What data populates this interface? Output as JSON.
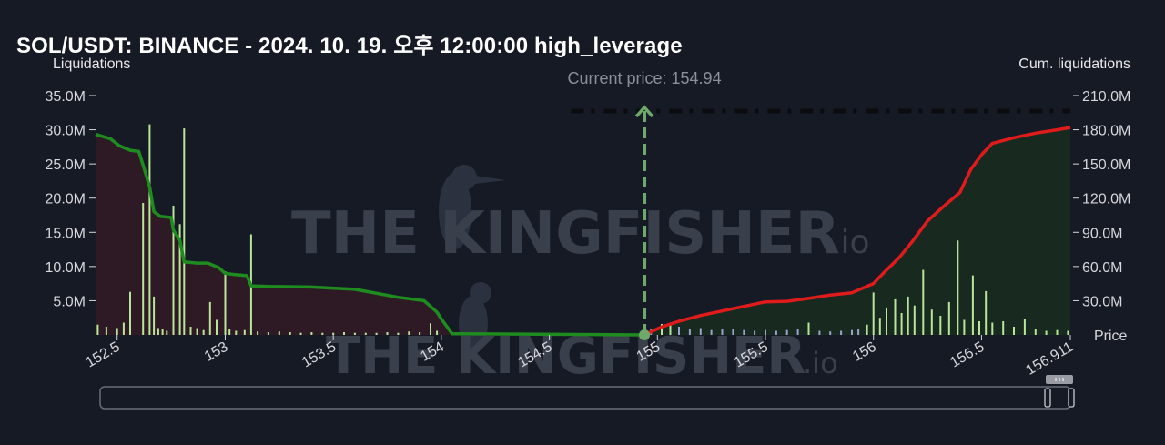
{
  "title": "SOL/USDT: BINANCE - 2024. 10. 19. 오후 12:00:00 high_leverage",
  "chart_data": {
    "type": "bar",
    "left_axis_label": "Liquidations",
    "right_axis_label": "Cum. liquidations",
    "x_axis_label": "Price",
    "current_price_label": "Current price: 154.94",
    "current_price": 154.94,
    "x_range": [
      152.4,
      156.911
    ],
    "x_ticks": [
      152.5,
      153,
      153.5,
      154,
      154.5,
      155,
      155.5,
      156,
      156.5,
      156.911
    ],
    "x_tick_labels": [
      "152.5",
      "153",
      "153.5",
      "154",
      "154.5",
      "155",
      "155.5",
      "156",
      "156.5",
      "156.911"
    ],
    "left_ylim": [
      0,
      35000000
    ],
    "left_ticks": [
      "5.0M",
      "10.0M",
      "15.0M",
      "20.0M",
      "25.0M",
      "30.0M",
      "35.0M"
    ],
    "left_tick_values": [
      5000000,
      10000000,
      15000000,
      20000000,
      25000000,
      30000000,
      35000000
    ],
    "right_ylim": [
      0,
      210000000
    ],
    "right_ticks": [
      "30.0M",
      "60.0M",
      "90.0M",
      "120.0M",
      "150.0M",
      "180.0M",
      "210.0M"
    ],
    "right_tick_values": [
      30000000,
      60000000,
      90000000,
      120000000,
      150000000,
      180000000,
      210000000
    ],
    "bars": [
      {
        "x": 152.41,
        "v": 1500000
      },
      {
        "x": 152.45,
        "v": 1200000
      },
      {
        "x": 152.5,
        "v": 1000000
      },
      {
        "x": 152.53,
        "v": 1800000
      },
      {
        "x": 152.56,
        "v": 6300000
      },
      {
        "x": 152.62,
        "v": 19300000
      },
      {
        "x": 152.65,
        "v": 30800000
      },
      {
        "x": 152.67,
        "v": 5600000
      },
      {
        "x": 152.69,
        "v": 1000000
      },
      {
        "x": 152.71,
        "v": 800000
      },
      {
        "x": 152.73,
        "v": 600000
      },
      {
        "x": 152.76,
        "v": 18900000
      },
      {
        "x": 152.79,
        "v": 16200000
      },
      {
        "x": 152.81,
        "v": 30200000
      },
      {
        "x": 152.84,
        "v": 1200000
      },
      {
        "x": 152.87,
        "v": 1000000
      },
      {
        "x": 152.9,
        "v": 700000
      },
      {
        "x": 152.93,
        "v": 4800000
      },
      {
        "x": 152.96,
        "v": 2200000
      },
      {
        "x": 153.0,
        "v": 9300000
      },
      {
        "x": 153.02,
        "v": 800000
      },
      {
        "x": 153.05,
        "v": 600000
      },
      {
        "x": 153.09,
        "v": 700000
      },
      {
        "x": 153.12,
        "v": 14700000
      },
      {
        "x": 153.15,
        "v": 500000
      },
      {
        "x": 153.2,
        "v": 400000
      },
      {
        "x": 153.25,
        "v": 500000
      },
      {
        "x": 153.3,
        "v": 400000
      },
      {
        "x": 153.35,
        "v": 300000
      },
      {
        "x": 153.4,
        "v": 400000
      },
      {
        "x": 153.45,
        "v": 300000
      },
      {
        "x": 153.5,
        "v": 300000
      },
      {
        "x": 153.55,
        "v": 400000
      },
      {
        "x": 153.6,
        "v": 300000
      },
      {
        "x": 153.65,
        "v": 300000
      },
      {
        "x": 153.7,
        "v": 300000
      },
      {
        "x": 153.75,
        "v": 400000
      },
      {
        "x": 153.8,
        "v": 300000
      },
      {
        "x": 153.85,
        "v": 500000
      },
      {
        "x": 153.9,
        "v": 400000
      },
      {
        "x": 153.95,
        "v": 1700000
      },
      {
        "x": 153.98,
        "v": 600000
      },
      {
        "x": 154.97,
        "v": 800000
      },
      {
        "x": 155.02,
        "v": 1600000
      },
      {
        "x": 155.06,
        "v": 1800000
      },
      {
        "x": 155.1,
        "v": 1200000
      },
      {
        "x": 155.15,
        "v": 900000
      },
      {
        "x": 155.2,
        "v": 1000000
      },
      {
        "x": 155.25,
        "v": 700000
      },
      {
        "x": 155.3,
        "v": 800000
      },
      {
        "x": 155.35,
        "v": 900000
      },
      {
        "x": 155.4,
        "v": 700000
      },
      {
        "x": 155.45,
        "v": 600000
      },
      {
        "x": 155.5,
        "v": 700000
      },
      {
        "x": 155.55,
        "v": 600000
      },
      {
        "x": 155.6,
        "v": 700000
      },
      {
        "x": 155.65,
        "v": 800000
      },
      {
        "x": 155.7,
        "v": 1800000
      },
      {
        "x": 155.75,
        "v": 600000
      },
      {
        "x": 155.8,
        "v": 500000
      },
      {
        "x": 155.85,
        "v": 600000
      },
      {
        "x": 155.9,
        "v": 700000
      },
      {
        "x": 155.93,
        "v": 900000
      },
      {
        "x": 155.97,
        "v": 1500000
      },
      {
        "x": 156.0,
        "v": 6200000
      },
      {
        "x": 156.03,
        "v": 2500000
      },
      {
        "x": 156.06,
        "v": 4000000
      },
      {
        "x": 156.1,
        "v": 5200000
      },
      {
        "x": 156.13,
        "v": 3200000
      },
      {
        "x": 156.16,
        "v": 5600000
      },
      {
        "x": 156.19,
        "v": 4300000
      },
      {
        "x": 156.23,
        "v": 9500000
      },
      {
        "x": 156.27,
        "v": 3700000
      },
      {
        "x": 156.31,
        "v": 2800000
      },
      {
        "x": 156.35,
        "v": 4800000
      },
      {
        "x": 156.39,
        "v": 13800000
      },
      {
        "x": 156.42,
        "v": 2200000
      },
      {
        "x": 156.46,
        "v": 8700000
      },
      {
        "x": 156.49,
        "v": 2000000
      },
      {
        "x": 156.52,
        "v": 6400000
      },
      {
        "x": 156.55,
        "v": 1800000
      },
      {
        "x": 156.6,
        "v": 2000000
      },
      {
        "x": 156.65,
        "v": 1200000
      },
      {
        "x": 156.7,
        "v": 2400000
      },
      {
        "x": 156.75,
        "v": 800000
      },
      {
        "x": 156.8,
        "v": 600000
      },
      {
        "x": 156.85,
        "v": 700000
      },
      {
        "x": 156.9,
        "v": 600000
      }
    ],
    "short_cumulative": [
      {
        "x": 152.4,
        "v": 176000000
      },
      {
        "x": 152.47,
        "v": 172000000
      },
      {
        "x": 152.51,
        "v": 166000000
      },
      {
        "x": 152.56,
        "v": 162000000
      },
      {
        "x": 152.6,
        "v": 161000000
      },
      {
        "x": 152.62,
        "v": 149000000
      },
      {
        "x": 152.65,
        "v": 130000000
      },
      {
        "x": 152.67,
        "v": 108000000
      },
      {
        "x": 152.7,
        "v": 104000000
      },
      {
        "x": 152.75,
        "v": 103000000
      },
      {
        "x": 152.76,
        "v": 92000000
      },
      {
        "x": 152.79,
        "v": 83000000
      },
      {
        "x": 152.81,
        "v": 64000000
      },
      {
        "x": 152.87,
        "v": 63000000
      },
      {
        "x": 152.92,
        "v": 63000000
      },
      {
        "x": 152.97,
        "v": 59000000
      },
      {
        "x": 153.0,
        "v": 54000000
      },
      {
        "x": 153.04,
        "v": 53000000
      },
      {
        "x": 153.1,
        "v": 52000000
      },
      {
        "x": 153.12,
        "v": 43000000
      },
      {
        "x": 153.2,
        "v": 42500000
      },
      {
        "x": 153.4,
        "v": 42000000
      },
      {
        "x": 153.6,
        "v": 40000000
      },
      {
        "x": 153.8,
        "v": 33000000
      },
      {
        "x": 153.92,
        "v": 30000000
      },
      {
        "x": 153.98,
        "v": 20000000
      },
      {
        "x": 154.0,
        "v": 14000000
      },
      {
        "x": 154.05,
        "v": 1000000
      },
      {
        "x": 154.94,
        "v": 0
      }
    ],
    "long_cumulative": [
      {
        "x": 154.94,
        "v": 0
      },
      {
        "x": 155.02,
        "v": 7000000
      },
      {
        "x": 155.1,
        "v": 12000000
      },
      {
        "x": 155.2,
        "v": 17000000
      },
      {
        "x": 155.3,
        "v": 21000000
      },
      {
        "x": 155.4,
        "v": 25000000
      },
      {
        "x": 155.5,
        "v": 29000000
      },
      {
        "x": 155.6,
        "v": 29500000
      },
      {
        "x": 155.7,
        "v": 32000000
      },
      {
        "x": 155.8,
        "v": 35000000
      },
      {
        "x": 155.9,
        "v": 37000000
      },
      {
        "x": 156.0,
        "v": 45000000
      },
      {
        "x": 156.05,
        "v": 55000000
      },
      {
        "x": 156.12,
        "v": 68000000
      },
      {
        "x": 156.18,
        "v": 82000000
      },
      {
        "x": 156.25,
        "v": 100000000
      },
      {
        "x": 156.32,
        "v": 112000000
      },
      {
        "x": 156.4,
        "v": 125000000
      },
      {
        "x": 156.45,
        "v": 145000000
      },
      {
        "x": 156.5,
        "v": 158000000
      },
      {
        "x": 156.55,
        "v": 168000000
      },
      {
        "x": 156.65,
        "v": 173000000
      },
      {
        "x": 156.75,
        "v": 177000000
      },
      {
        "x": 156.85,
        "v": 180000000
      },
      {
        "x": 156.911,
        "v": 182000000
      }
    ],
    "dashed_line_x": [
      154.6,
      156.911
    ],
    "colors": {
      "bar": "#b9e59a",
      "bar_dim": "#9aa3c9",
      "short_line": "#1f8c1f",
      "short_fill": "#2e1a24",
      "long_line": "#e01b1b",
      "long_fill": "#18291f",
      "current_price_marker": "#6ea86a",
      "background": "#161a25"
    },
    "watermark": "THE KINGFISHER",
    "watermark_suffix": ".io"
  }
}
